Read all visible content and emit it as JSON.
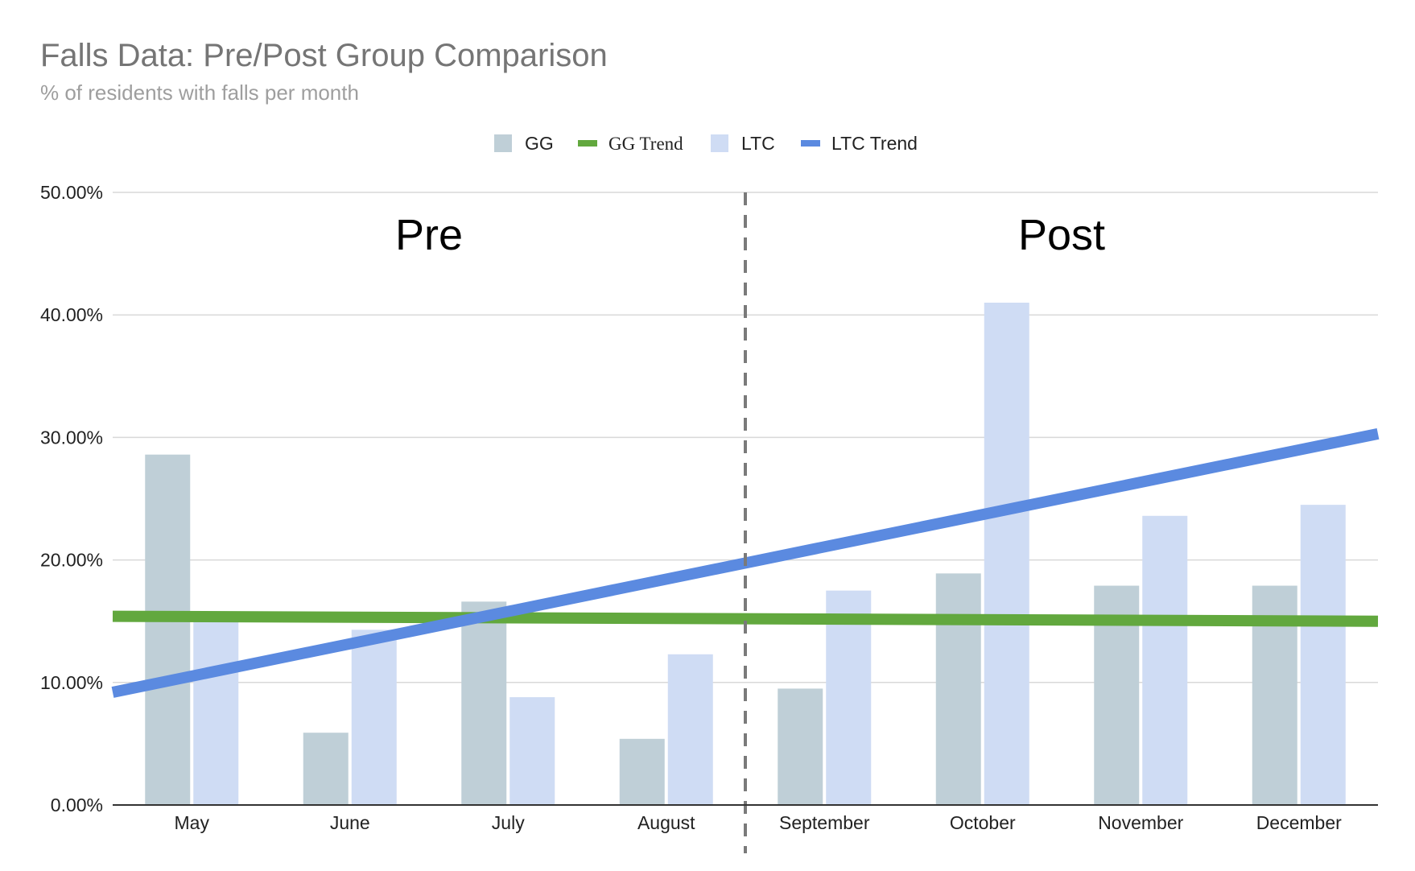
{
  "chart_data": {
    "type": "bar",
    "title": "Falls Data: Pre/Post Group Comparison",
    "subtitle": "% of residents with falls per month",
    "categories": [
      "May",
      "June",
      "July",
      "August",
      "September",
      "October",
      "November",
      "December"
    ],
    "series": [
      {
        "name": "GG",
        "kind": "bar",
        "color": "#bfcfd7",
        "values": [
          28.6,
          5.9,
          16.6,
          5.4,
          9.5,
          18.9,
          17.9,
          17.9
        ]
      },
      {
        "name": "LTC",
        "kind": "bar",
        "color": "#cfdcf4",
        "values": [
          15.0,
          14.3,
          8.8,
          12.3,
          17.5,
          41.0,
          23.6,
          24.5
        ]
      },
      {
        "name": "GG Trend",
        "kind": "trendline",
        "color": "#62a83e",
        "start": 15.4,
        "end": 15.0
      },
      {
        "name": "LTC Trend",
        "kind": "trendline",
        "color": "#5b8ae0",
        "start": 9.2,
        "end": 30.3
      }
    ],
    "y_ticks": [
      "0.00%",
      "10.00%",
      "20.00%",
      "30.00%",
      "40.00%",
      "50.00%"
    ],
    "ylim": [
      0,
      50
    ],
    "grid": true,
    "legend_position": "top",
    "divider": {
      "style": "dashed",
      "color": "#7a7a7a",
      "after_category": "August"
    },
    "annotations": [
      {
        "text": "Pre",
        "region": "left"
      },
      {
        "text": "Post",
        "region": "right"
      }
    ]
  }
}
